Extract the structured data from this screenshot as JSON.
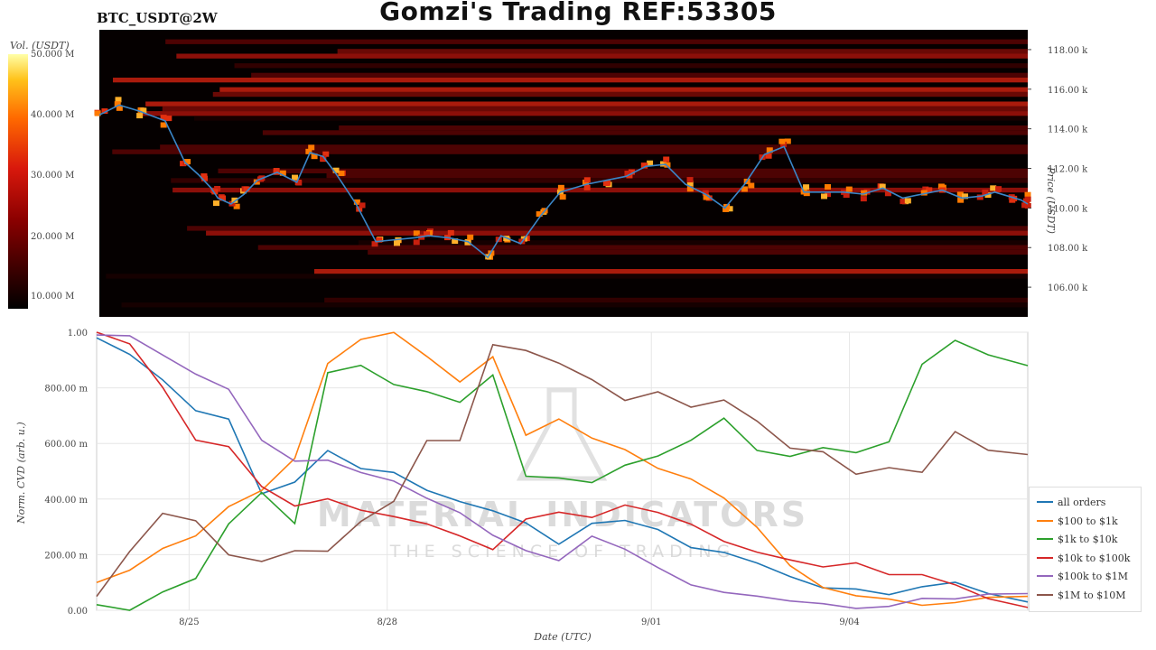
{
  "title": "Gomzi's Trading REF:53305",
  "pair": "BTC_USDT@2W",
  "colorbar": {
    "label": "Vol. (USDT)",
    "ticks": [
      "50.000 M",
      "40.000 M",
      "30.000 M",
      "20.000 M",
      "10.000 M"
    ]
  },
  "watermark": {
    "line1": "MATERIAL INDICATORS",
    "line2": "THE SCIENCE OF TRADING"
  },
  "chart_data": [
    {
      "type": "heatmap",
      "title": "BTC_USDT@2W",
      "ylabel": "Price (USDT)",
      "ylim": [
        104500,
        119000
      ],
      "yticks": [
        "106.00 k",
        "108.00 k",
        "110.00 k",
        "112.00 k",
        "114.00 k",
        "116.00 k",
        "118.00 k"
      ],
      "colorbar_label": "Vol. (USDT)",
      "colorbar_range": [
        0,
        50000000
      ],
      "price_series": {
        "name": "Price",
        "color": "#3a86c8",
        "x": [
          0,
          0.3,
          0.6,
          1.0,
          1.3,
          1.5,
          1.7,
          1.8,
          2.0,
          2.2,
          2.4,
          2.7,
          3.0,
          3.2,
          3.4,
          3.6,
          3.9,
          4.2,
          4.5,
          4.8,
          5.0,
          5.3,
          5.6,
          5.9,
          6.1,
          6.4,
          6.7,
          7.0,
          7.4,
          7.7,
          8.0,
          8.3,
          8.6,
          8.9,
          9.2,
          9.5,
          9.8,
          10.1,
          10.4,
          10.7,
          11.0,
          11.3,
          11.6,
          11.9,
          12.2,
          12.5,
          12.8,
          13.1,
          13.4,
          13.6,
          13.8,
          14.0,
          14.1
        ],
        "y": [
          114700,
          115200,
          114900,
          114400,
          112300,
          111700,
          111000,
          110500,
          110200,
          110700,
          111400,
          111800,
          111300,
          112800,
          112600,
          111700,
          110200,
          108300,
          108400,
          108500,
          108600,
          108500,
          108300,
          107500,
          108600,
          108200,
          109600,
          110800,
          111200,
          111400,
          111600,
          112100,
          112200,
          111200,
          110700,
          110000,
          111200,
          112700,
          113100,
          110800,
          110800,
          110800,
          110700,
          111000,
          110500,
          110700,
          110900,
          110500,
          110600,
          110800,
          110600,
          110400,
          110200
        ]
      }
    },
    {
      "type": "line",
      "xlabel": "Date (UTC)",
      "ylabel": "Norm. CVD (arb. u.)",
      "ylim": [
        0,
        1
      ],
      "yticks": [
        "0.00",
        "200.00 m",
        "400.00 m",
        "600.00 m",
        "800.00 m",
        "1.00"
      ],
      "xticks": [
        "8/25",
        "8/28",
        "9/01",
        "9/04"
      ],
      "x": [
        0,
        0.5,
        1.0,
        1.5,
        2.0,
        2.5,
        3.0,
        3.5,
        4.0,
        4.5,
        5.0,
        5.5,
        6.0,
        6.5,
        7.0,
        7.5,
        8.0,
        8.5,
        9.0,
        9.5,
        10.0,
        10.5,
        11.0,
        11.5,
        12.0,
        12.5,
        13.0,
        13.5,
        14.1
      ],
      "legend_position": "lower-right",
      "series": [
        {
          "name": "all orders",
          "color": "#1f77b4",
          "values": [
            0.98,
            0.93,
            0.82,
            0.71,
            0.68,
            0.42,
            0.46,
            0.57,
            0.52,
            0.49,
            0.44,
            0.4,
            0.35,
            0.31,
            0.25,
            0.32,
            0.32,
            0.3,
            0.23,
            0.21,
            0.16,
            0.12,
            0.08,
            0.07,
            0.06,
            0.09,
            0.11,
            0.07,
            0.03
          ]
        },
        {
          "name": "$100 to $1k",
          "color": "#ff7f0e",
          "values": [
            0.1,
            0.15,
            0.22,
            0.28,
            0.38,
            0.42,
            0.55,
            0.89,
            0.97,
            0.99,
            0.92,
            0.83,
            0.9,
            0.64,
            0.68,
            0.63,
            0.58,
            0.52,
            0.47,
            0.4,
            0.3,
            0.15,
            0.09,
            0.06,
            0.04,
            0.02,
            0.02,
            0.04,
            0.05
          ]
        },
        {
          "name": "$1k to $10k",
          "color": "#2ca02c",
          "values": [
            0.02,
            0.01,
            0.06,
            0.12,
            0.3,
            0.42,
            0.3,
            0.85,
            0.87,
            0.82,
            0.78,
            0.76,
            0.85,
            0.48,
            0.48,
            0.45,
            0.52,
            0.56,
            0.62,
            0.7,
            0.58,
            0.55,
            0.58,
            0.56,
            0.6,
            0.88,
            0.98,
            0.91,
            0.88
          ]
        },
        {
          "name": "$10k to $100k",
          "color": "#d62728",
          "values": [
            1.0,
            0.96,
            0.8,
            0.62,
            0.58,
            0.45,
            0.37,
            0.4,
            0.37,
            0.33,
            0.3,
            0.27,
            0.21,
            0.33,
            0.35,
            0.34,
            0.38,
            0.36,
            0.31,
            0.25,
            0.21,
            0.17,
            0.15,
            0.16,
            0.14,
            0.12,
            0.08,
            0.05,
            0.01
          ]
        },
        {
          "name": "$100k to $1M",
          "color": "#9467bd",
          "values": [
            0.99,
            0.98,
            0.93,
            0.85,
            0.8,
            0.6,
            0.53,
            0.55,
            0.5,
            0.47,
            0.4,
            0.35,
            0.27,
            0.22,
            0.19,
            0.26,
            0.22,
            0.16,
            0.09,
            0.06,
            0.05,
            0.04,
            0.03,
            0.01,
            0.02,
            0.04,
            0.05,
            0.07,
            0.06
          ]
        },
        {
          "name": "$1M to $10M",
          "color": "#8c564b",
          "values": [
            0.05,
            0.2,
            0.35,
            0.33,
            0.2,
            0.17,
            0.22,
            0.2,
            0.32,
            0.38,
            0.6,
            0.62,
            0.95,
            0.93,
            0.9,
            0.82,
            0.75,
            0.78,
            0.72,
            0.76,
            0.68,
            0.59,
            0.58,
            0.48,
            0.52,
            0.5,
            0.65,
            0.58,
            0.56
          ]
        }
      ]
    }
  ]
}
